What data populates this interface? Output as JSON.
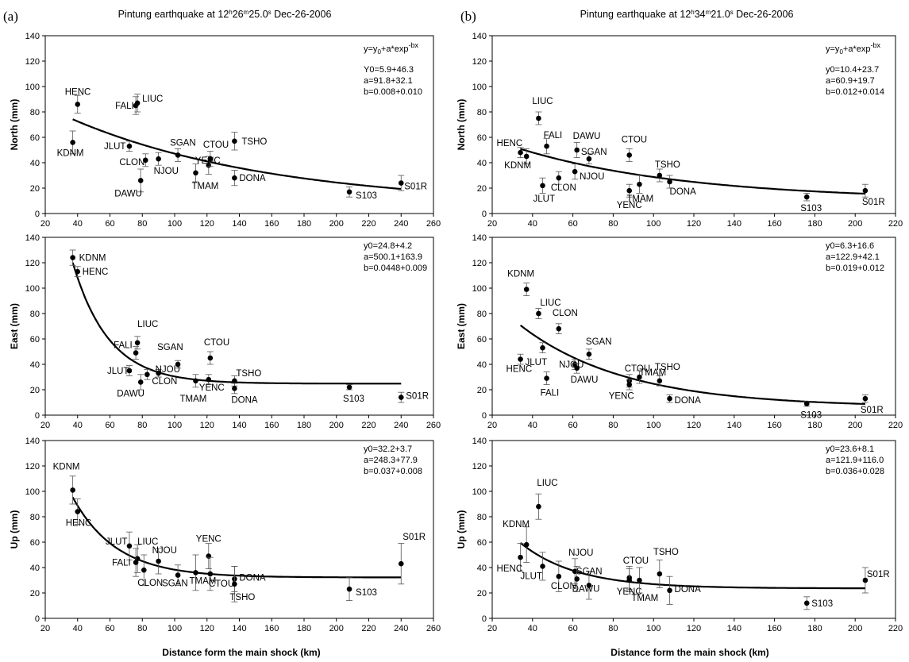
{
  "figure": {
    "left_letter": "(a)",
    "right_letter": "(b)",
    "left_title": "Pintung earthquake at 12h26m25.0s Dec-26-2006",
    "right_title": "Pintung earthquake at 12h34m21.0s Dec-26-2006",
    "xlabel": "Distance form the main shock (km)",
    "formula": "y=y0+a*exp-bx"
  },
  "chart_data": [
    {
      "id": "a-north",
      "type": "scatter",
      "ylabel": "North (mm)",
      "xlim": [
        20,
        260
      ],
      "ylim": [
        0,
        140
      ],
      "xticks": [
        20,
        40,
        60,
        80,
        100,
        120,
        140,
        160,
        180,
        200,
        220,
        240,
        260
      ],
      "yticks": [
        0,
        20,
        40,
        60,
        80,
        100,
        120,
        140
      ],
      "show_formula": true,
      "annotations": [
        "Y0=5.9+46.3",
        "a=91.8+32.1",
        "b=0.008+0.010"
      ],
      "fit": {
        "y0": 5.9,
        "a": 91.8,
        "b": 0.008
      },
      "points": [
        {
          "label": "HENC",
          "x": 40,
          "y": 86,
          "err": 7
        },
        {
          "label": "KDNM",
          "x": 37,
          "y": 56,
          "err": 9
        },
        {
          "label": "FALI",
          "x": 76,
          "y": 85,
          "err": 7
        },
        {
          "label": "LIUC",
          "x": 77,
          "y": 87,
          "err": 7
        },
        {
          "label": "JLUT",
          "x": 72,
          "y": 53,
          "err": 4
        },
        {
          "label": "CLON",
          "x": 82,
          "y": 42,
          "err": 5
        },
        {
          "label": "NJOU",
          "x": 90,
          "y": 43,
          "err": 5
        },
        {
          "label": "SGAN",
          "x": 102,
          "y": 46,
          "err": 5
        },
        {
          "label": "DAWU",
          "x": 79,
          "y": 26,
          "err": 9
        },
        {
          "label": "TMAM",
          "x": 113,
          "y": 32,
          "err": 7
        },
        {
          "label": "YENC",
          "x": 121,
          "y": 38,
          "err": 7
        },
        {
          "label": "CTOU",
          "x": 122,
          "y": 43,
          "err": 6
        },
        {
          "label": "TSHO",
          "x": 137,
          "y": 57,
          "err": 7
        },
        {
          "label": "DONA",
          "x": 137,
          "y": 28,
          "err": 6
        },
        {
          "label": "S103",
          "x": 208,
          "y": 17,
          "err": 4
        },
        {
          "label": "S01R",
          "x": 240,
          "y": 24,
          "err": 6
        }
      ]
    },
    {
      "id": "a-east",
      "type": "scatter",
      "ylabel": "East (mm)",
      "xlim": [
        20,
        260
      ],
      "ylim": [
        0,
        140
      ],
      "xticks": [
        20,
        40,
        60,
        80,
        100,
        120,
        140,
        160,
        180,
        200,
        220,
        240,
        260
      ],
      "yticks": [
        0,
        20,
        40,
        60,
        80,
        100,
        120,
        140
      ],
      "show_formula": false,
      "annotations": [
        "y0=24.8+4.2",
        "a=500.1+163.9",
        "b=0.0448+0.009"
      ],
      "fit": {
        "y0": 24.8,
        "a": 500.1,
        "b": 0.0448
      },
      "points": [
        {
          "label": "KDNM",
          "x": 37,
          "y": 124,
          "err": 6
        },
        {
          "label": "HENC",
          "x": 40,
          "y": 113,
          "err": 4
        },
        {
          "label": "LIUC",
          "x": 77,
          "y": 57,
          "err": 5
        },
        {
          "label": "FALI",
          "x": 76,
          "y": 49,
          "err": 5
        },
        {
          "label": "JLUT",
          "x": 72,
          "y": 35,
          "err": 4
        },
        {
          "label": "NJOU",
          "x": 90,
          "y": 33,
          "err": 3
        },
        {
          "label": "SGAN",
          "x": 102,
          "y": 40,
          "err": 3
        },
        {
          "label": "CTOU",
          "x": 122,
          "y": 45,
          "err": 5
        },
        {
          "label": "DAWU",
          "x": 79,
          "y": 26,
          "err": 6
        },
        {
          "label": "CLON",
          "x": 83,
          "y": 32,
          "err": 4
        },
        {
          "label": "YENC",
          "x": 121,
          "y": 28,
          "err": 4
        },
        {
          "label": "TMAM",
          "x": 113,
          "y": 27,
          "err": 5
        },
        {
          "label": "TSHO",
          "x": 137,
          "y": 27,
          "err": 4
        },
        {
          "label": "DONA",
          "x": 137,
          "y": 21,
          "err": 4
        },
        {
          "label": "S103",
          "x": 208,
          "y": 22,
          "err": 2
        },
        {
          "label": "S01R",
          "x": 240,
          "y": 14,
          "err": 4
        }
      ]
    },
    {
      "id": "a-up",
      "type": "scatter",
      "ylabel": "Up (mm)",
      "xlim": [
        20,
        260
      ],
      "ylim": [
        0,
        140
      ],
      "xticks": [
        20,
        40,
        60,
        80,
        100,
        120,
        140,
        160,
        180,
        200,
        220,
        240,
        260
      ],
      "yticks": [
        0,
        20,
        40,
        60,
        80,
        100,
        120,
        140
      ],
      "show_formula": false,
      "annotations": [
        "y0=32.2+3.7",
        "a=248.3+77.9",
        "b=0.037+0.008"
      ],
      "fit": {
        "y0": 32.2,
        "a": 248.3,
        "b": 0.037
      },
      "points": [
        {
          "label": "KDNM",
          "x": 37,
          "y": 101,
          "err": 11
        },
        {
          "label": "HENC",
          "x": 40,
          "y": 84,
          "err": 10
        },
        {
          "label": "JLUT",
          "x": 72,
          "y": 57,
          "err": 11
        },
        {
          "label": "LIUC",
          "x": 77,
          "y": 47,
          "err": 11
        },
        {
          "label": "FALI",
          "x": 76,
          "y": 44,
          "err": 11
        },
        {
          "label": "CLON",
          "x": 81,
          "y": 38,
          "err": 12
        },
        {
          "label": "NJOU",
          "x": 90,
          "y": 45,
          "err": 10
        },
        {
          "label": "SGAN",
          "x": 102,
          "y": 34,
          "err": 8
        },
        {
          "label": "YENC",
          "x": 121,
          "y": 49,
          "err": 10
        },
        {
          "label": "TMAM",
          "x": 113,
          "y": 36,
          "err": 14
        },
        {
          "label": "CTOU",
          "x": 122,
          "y": 35,
          "err": 13
        },
        {
          "label": "DONA",
          "x": 137,
          "y": 31,
          "err": 10
        },
        {
          "label": "TSHO",
          "x": 137,
          "y": 27,
          "err": 14
        },
        {
          "label": "S103",
          "x": 208,
          "y": 23,
          "err": 9
        },
        {
          "label": "S01R",
          "x": 240,
          "y": 43,
          "err": 16
        }
      ]
    },
    {
      "id": "b-north",
      "type": "scatter",
      "ylabel": "North (mm)",
      "xlim": [
        20,
        220
      ],
      "ylim": [
        0,
        140
      ],
      "xticks": [
        20,
        40,
        60,
        80,
        100,
        120,
        140,
        160,
        180,
        200,
        220
      ],
      "yticks": [
        0,
        20,
        40,
        60,
        80,
        100,
        120,
        140
      ],
      "show_formula": true,
      "annotations": [
        "y0=10.4+23.7",
        "a=60.9+19.7",
        "b=0.012+0.014"
      ],
      "fit": {
        "y0": 10.4,
        "a": 60.9,
        "b": 0.012
      },
      "points": [
        {
          "label": "LIUC",
          "x": 43,
          "y": 75,
          "err": 5
        },
        {
          "label": "FALI",
          "x": 47,
          "y": 53,
          "err": 6
        },
        {
          "label": "HENC",
          "x": 34,
          "y": 48,
          "err": 4
        },
        {
          "label": "KDNM",
          "x": 37,
          "y": 45,
          "err": 6
        },
        {
          "label": "DAWU",
          "x": 62,
          "y": 50,
          "err": 6
        },
        {
          "label": "SGAN",
          "x": 68,
          "y": 43,
          "err": 4
        },
        {
          "label": "JLUT",
          "x": 45,
          "y": 22,
          "err": 6
        },
        {
          "label": "CLON",
          "x": 53,
          "y": 28,
          "err": 5
        },
        {
          "label": "NJOU",
          "x": 61,
          "y": 33,
          "err": 6
        },
        {
          "label": "CTOU",
          "x": 88,
          "y": 46,
          "err": 5
        },
        {
          "label": "YENC",
          "x": 88,
          "y": 18,
          "err": 5
        },
        {
          "label": "TMAM",
          "x": 93,
          "y": 23,
          "err": 7
        },
        {
          "label": "TSHO",
          "x": 103,
          "y": 30,
          "err": 5
        },
        {
          "label": "DONA",
          "x": 108,
          "y": 25,
          "err": 5
        },
        {
          "label": "S103",
          "x": 176,
          "y": 13,
          "err": 3
        },
        {
          "label": "S01R",
          "x": 205,
          "y": 18,
          "err": 5
        }
      ]
    },
    {
      "id": "b-east",
      "type": "scatter",
      "ylabel": "East (mm)",
      "xlim": [
        20,
        220
      ],
      "ylim": [
        0,
        140
      ],
      "xticks": [
        20,
        40,
        60,
        80,
        100,
        120,
        140,
        160,
        180,
        200,
        220
      ],
      "yticks": [
        0,
        20,
        40,
        60,
        80,
        100,
        120,
        140
      ],
      "show_formula": false,
      "annotations": [
        "y0=6.3+16.6",
        "a=122.9+42.1",
        "b=0.019+0.012"
      ],
      "fit": {
        "y0": 6.3,
        "a": 122.9,
        "b": 0.019
      },
      "points": [
        {
          "label": "KDNM",
          "x": 37,
          "y": 99,
          "err": 5
        },
        {
          "label": "LIUC",
          "x": 43,
          "y": 80,
          "err": 4
        },
        {
          "label": "CLON",
          "x": 53,
          "y": 68,
          "err": 4
        },
        {
          "label": "SGAN",
          "x": 68,
          "y": 48,
          "err": 4
        },
        {
          "label": "HENC",
          "x": 34,
          "y": 44,
          "err": 4
        },
        {
          "label": "JLUT",
          "x": 45,
          "y": 53,
          "err": 4
        },
        {
          "label": "FALI",
          "x": 47,
          "y": 29,
          "err": 5
        },
        {
          "label": "NJOU",
          "x": 61,
          "y": 40,
          "err": 4
        },
        {
          "label": "DAWU",
          "x": 62,
          "y": 37,
          "err": 4
        },
        {
          "label": "CTOU",
          "x": 88,
          "y": 27,
          "err": 5
        },
        {
          "label": "TMAM",
          "x": 93,
          "y": 30,
          "err": 5
        },
        {
          "label": "YENC",
          "x": 88,
          "y": 24,
          "err": 4
        },
        {
          "label": "TSHO",
          "x": 103,
          "y": 27,
          "err": 4
        },
        {
          "label": "DONA",
          "x": 108,
          "y": 13,
          "err": 3
        },
        {
          "label": "S103",
          "x": 176,
          "y": 9,
          "err": 2
        },
        {
          "label": "S01R",
          "x": 205,
          "y": 13,
          "err": 3
        }
      ]
    },
    {
      "id": "b-up",
      "type": "scatter",
      "ylabel": "Up (mm)",
      "xlim": [
        20,
        220
      ],
      "ylim": [
        0,
        140
      ],
      "xticks": [
        20,
        40,
        60,
        80,
        100,
        120,
        140,
        160,
        180,
        200,
        220
      ],
      "yticks": [
        0,
        20,
        40,
        60,
        80,
        100,
        120,
        140
      ],
      "show_formula": false,
      "annotations": [
        "y0=23.6+8.1",
        "a=121.9+116.0",
        "b=0.036+0.028"
      ],
      "fit": {
        "y0": 23.6,
        "a": 121.9,
        "b": 0.036
      },
      "points": [
        {
          "label": "LIUC",
          "x": 43,
          "y": 88,
          "err": 10
        },
        {
          "label": "KDNM",
          "x": 37,
          "y": 58,
          "err": 14
        },
        {
          "label": "HENC",
          "x": 34,
          "y": 48,
          "err": 11
        },
        {
          "label": "JLUT",
          "x": 45,
          "y": 41,
          "err": 11
        },
        {
          "label": "CLON",
          "x": 53,
          "y": 33,
          "err": 12
        },
        {
          "label": "NJOU",
          "x": 61,
          "y": 37,
          "err": 10
        },
        {
          "label": "SGAN",
          "x": 68,
          "y": 26,
          "err": 11
        },
        {
          "label": "DAWU",
          "x": 62,
          "y": 31,
          "err": 10
        },
        {
          "label": "CTOU",
          "x": 88,
          "y": 32,
          "err": 9
        },
        {
          "label": "YENC",
          "x": 88,
          "y": 30,
          "err": 9
        },
        {
          "label": "TMAM",
          "x": 93,
          "y": 30,
          "err": 10
        },
        {
          "label": "TSHO",
          "x": 103,
          "y": 35,
          "err": 11
        },
        {
          "label": "DONA",
          "x": 108,
          "y": 22,
          "err": 11
        },
        {
          "label": "S103",
          "x": 176,
          "y": 12,
          "err": 5
        },
        {
          "label": "S01R",
          "x": 205,
          "y": 30,
          "err": 10
        }
      ]
    }
  ]
}
